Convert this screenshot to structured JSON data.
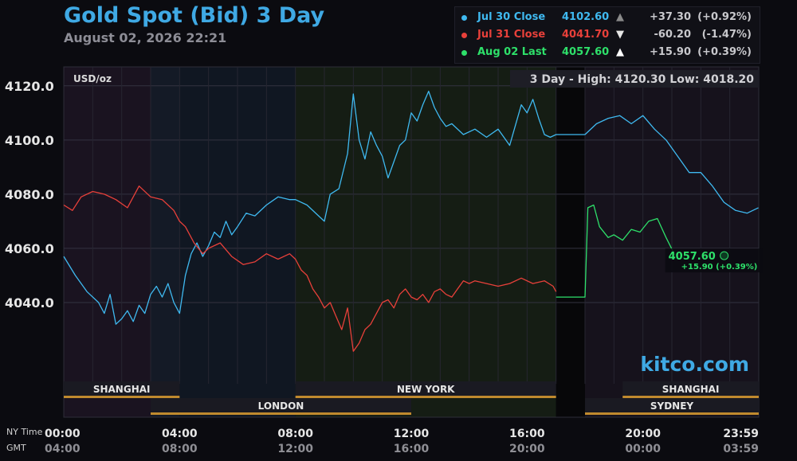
{
  "header": {
    "title": "Gold Spot (Bid) 3 Day",
    "subtitle": "August 02, 2026 22:21"
  },
  "legend": [
    {
      "name": "Jul 30 Close",
      "value": "4102.60",
      "arrow": "▲",
      "change": "+37.30",
      "pct": "(+0.92%)",
      "color": "#3fb9f0",
      "arrow_color": "#8a8a8a",
      "text_color": "#3fb9f0"
    },
    {
      "name": "Jul 31 Close",
      "value": "4041.70",
      "arrow": "▼",
      "change": "-60.20",
      "pct": "(-1.47%)",
      "color": "#e8403a",
      "arrow_color": "#e6e6e6",
      "text_color": "#e8403a"
    },
    {
      "name": "Aug 02 Last",
      "value": "4057.60",
      "arrow": "▲",
      "change": "+15.90",
      "pct": "(+0.39%)",
      "color": "#2ee06a",
      "arrow_color": "#ffffff",
      "text_color": "#2ee06a"
    }
  ],
  "colors": {
    "background": "#0b0b10",
    "grid": "#2a2a36",
    "jul30": "#3fb9f0",
    "jul31": "#e8403a",
    "aug02": "#2ee06a",
    "session_bar": "#c08a2e",
    "brand": "#3fa9e4"
  },
  "chart_data": {
    "type": "line",
    "title": "Gold Spot (Bid) 3 Day",
    "unit_label": "USD/oz",
    "high_low_label": "3 Day - High: 4120.30   Low: 4018.20",
    "brand": "kitco.com",
    "ylim": [
      4010,
      4127
    ],
    "yticks": [
      "4120.0",
      "4100.0",
      "4080.0",
      "4060.0",
      "4040.0"
    ],
    "ytick_values": [
      4120,
      4100,
      4080,
      4060,
      4040
    ],
    "x_range_hours": [
      0,
      24
    ],
    "xticks_ny": [
      "00:00",
      "04:00",
      "08:00",
      "12:00",
      "16:00",
      "20:00",
      "23:59"
    ],
    "xticks_gmt": [
      "04:00",
      "08:00",
      "12:00",
      "16:00",
      "20:00",
      "00:00",
      "03:59"
    ],
    "xtick_hours": [
      0,
      4,
      8,
      12,
      16,
      20,
      24
    ],
    "x_row_labels": {
      "ny": "NY Time",
      "gmt": "GMT"
    },
    "sessions": [
      {
        "name": "SHANGHAI",
        "start": 0,
        "end": 4.0
      },
      {
        "name": "NEW YORK",
        "start": 8.0,
        "end": 17.0
      },
      {
        "name": "SHANGHAI",
        "start": 19.3,
        "end": 24
      }
    ],
    "sessions_row2": [
      {
        "name": "LONDON",
        "start": 3.0,
        "end": 12.0
      },
      {
        "name": "SYDNEY",
        "start": 18.0,
        "end": 24
      }
    ],
    "series": [
      {
        "name": "Jul 30 Close",
        "color": "#3fb9f0",
        "x": [
          0.0,
          0.4,
          0.8,
          1.2,
          1.4,
          1.6,
          1.8,
          2.0,
          2.2,
          2.4,
          2.6,
          2.8,
          3.0,
          3.2,
          3.4,
          3.6,
          3.8,
          4.0,
          4.2,
          4.4,
          4.6,
          4.8,
          5.0,
          5.2,
          5.4,
          5.6,
          5.8,
          6.0,
          6.3,
          6.6,
          7.0,
          7.4,
          7.8,
          8.0,
          8.4,
          8.8,
          9.0,
          9.2,
          9.5,
          9.8,
          10.0,
          10.2,
          10.4,
          10.6,
          10.8,
          11.0,
          11.2,
          11.4,
          11.6,
          11.8,
          12.0,
          12.2,
          12.4,
          12.6,
          12.8,
          13.0,
          13.2,
          13.4,
          13.8,
          14.2,
          14.6,
          15.0,
          15.4,
          15.8,
          16.0,
          16.2,
          16.4,
          16.6,
          16.8,
          17.0,
          17.4,
          17.8,
          18.0,
          18.4,
          18.8,
          19.2,
          19.6,
          20.0,
          20.4,
          20.8,
          21.2,
          21.6,
          22.0,
          22.4,
          22.8,
          23.2,
          23.6,
          23.99
        ],
        "values": [
          4057,
          4050,
          4044,
          4040,
          4036,
          4043,
          4032,
          4034,
          4037,
          4033,
          4039,
          4036,
          4043,
          4046,
          4042,
          4047,
          4040,
          4036,
          4050,
          4058,
          4062,
          4057,
          4061,
          4066,
          4064,
          4070,
          4065,
          4068,
          4073,
          4072,
          4076,
          4079,
          4078,
          4078,
          4076,
          4072,
          4070,
          4080,
          4082,
          4095,
          4117,
          4100,
          4093,
          4103,
          4098,
          4094,
          4086,
          4092,
          4098,
          4100,
          4110,
          4107,
          4113,
          4118,
          4112,
          4108,
          4105,
          4106,
          4102,
          4104,
          4101,
          4104,
          4098,
          4113,
          4110,
          4115,
          4108,
          4102,
          4101,
          4102,
          4102,
          4102,
          4102,
          4106,
          4108,
          4109,
          4106,
          4109,
          4104,
          4100,
          4094,
          4088,
          4088,
          4083,
          4077,
          4074,
          4073,
          4075
        ]
      },
      {
        "name": "Jul 31 Close",
        "color": "#e8403a",
        "x": [
          0.0,
          0.3,
          0.6,
          1.0,
          1.4,
          1.8,
          2.2,
          2.6,
          3.0,
          3.4,
          3.8,
          4.0,
          4.2,
          4.5,
          4.8,
          5.0,
          5.4,
          5.8,
          6.2,
          6.6,
          7.0,
          7.4,
          7.8,
          8.0,
          8.2,
          8.4,
          8.6,
          8.8,
          9.0,
          9.2,
          9.4,
          9.6,
          9.8,
          10.0,
          10.2,
          10.4,
          10.6,
          10.8,
          11.0,
          11.2,
          11.4,
          11.6,
          11.8,
          12.0,
          12.2,
          12.4,
          12.6,
          12.8,
          13.0,
          13.2,
          13.4,
          13.6,
          13.8,
          14.0,
          14.2,
          14.6,
          15.0,
          15.4,
          15.8,
          16.2,
          16.6,
          16.9,
          17.0
        ],
        "values": [
          4076,
          4074,
          4079,
          4081,
          4080,
          4078,
          4075,
          4083,
          4079,
          4078,
          4074,
          4070,
          4068,
          4062,
          4058,
          4060,
          4062,
          4057,
          4054,
          4055,
          4058,
          4056,
          4058,
          4056,
          4052,
          4050,
          4045,
          4042,
          4038,
          4040,
          4035,
          4030,
          4038,
          4022,
          4025,
          4030,
          4032,
          4036,
          4040,
          4041,
          4038,
          4043,
          4045,
          4042,
          4041,
          4043,
          4040,
          4044,
          4045,
          4043,
          4042,
          4045,
          4048,
          4047,
          4048,
          4047,
          4046,
          4047,
          4049,
          4047,
          4048,
          4046,
          4044
        ]
      },
      {
        "name": "Aug 02 Last",
        "color": "#2ee06a",
        "x": [
          17.0,
          18.0,
          18.1,
          18.3,
          18.5,
          18.8,
          19.0,
          19.3,
          19.6,
          19.9,
          20.2,
          20.5,
          20.8,
          21.1
        ],
        "values": [
          4042,
          4042,
          4075,
          4076,
          4068,
          4064,
          4065,
          4063,
          4067,
          4066,
          4070,
          4071,
          4064,
          4057.6
        ]
      }
    ],
    "last_point": {
      "x": 21.1,
      "value": "4057.60",
      "change": "+15.90 (+0.39%)"
    }
  }
}
